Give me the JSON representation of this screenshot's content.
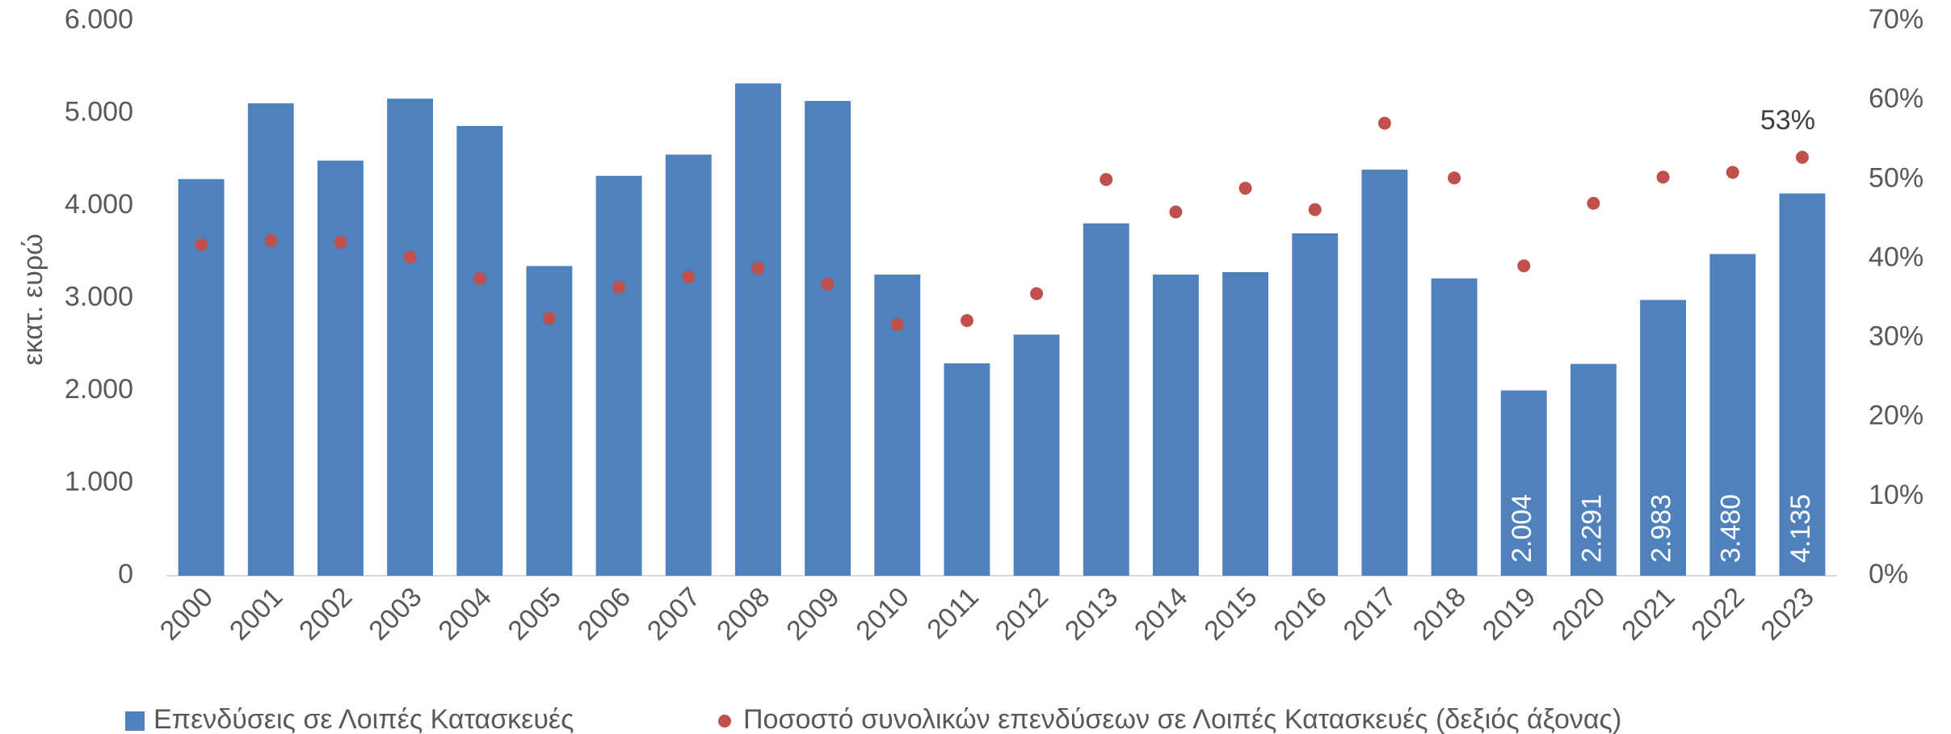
{
  "chart_data": {
    "type": "bar",
    "categories": [
      "2000",
      "2001",
      "2002",
      "2003",
      "2004",
      "2005",
      "2006",
      "2007",
      "2008",
      "2009",
      "2010",
      "2011",
      "2012",
      "2013",
      "2014",
      "2015",
      "2016",
      "2017",
      "2018",
      "2019",
      "2020",
      "2021",
      "2022",
      "2023"
    ],
    "series": [
      {
        "name": "Επενδύσεις σε Λοιπές Κατασκευές",
        "color": "#4f81bd",
        "values": [
          4290,
          5110,
          4490,
          5160,
          4865,
          3350,
          4325,
          4555,
          5325,
          5135,
          3257,
          2297,
          2608,
          3811,
          3257,
          3284,
          3703,
          4392,
          3216,
          2004,
          2291,
          2983,
          3480,
          4135
        ],
        "value_labels": [
          null,
          null,
          null,
          null,
          null,
          null,
          null,
          null,
          null,
          null,
          null,
          null,
          null,
          null,
          null,
          null,
          null,
          null,
          null,
          "2.004",
          "2.291",
          "2.983",
          "3.480",
          "4.135"
        ]
      },
      {
        "name": "Ποσοστό συνολικών επενδύσεων σε Λοιπές Κατασκευές (δεξιός άξονας)",
        "color": "#c0504d",
        "type": "scatter",
        "axis": "y2",
        "values": [
          41.8,
          42.3,
          42.1,
          40.2,
          37.5,
          32.5,
          36.4,
          37.7,
          38.8,
          36.8,
          31.7,
          32.2,
          35.6,
          50.0,
          45.9,
          48.9,
          46.2,
          57.1,
          50.2,
          39.1,
          47.0,
          50.3,
          50.9,
          52.8
        ],
        "value_labels": [
          null,
          null,
          null,
          null,
          null,
          null,
          null,
          null,
          null,
          null,
          null,
          null,
          null,
          null,
          null,
          null,
          null,
          null,
          null,
          null,
          null,
          null,
          null,
          "53%"
        ]
      }
    ],
    "y_label": "εκατ. ευρώ",
    "ylim": [
      0,
      6000
    ],
    "yticks": [
      0,
      {
        "value": 1000,
        "label": "1.000"
      },
      {
        "value": 2000,
        "label": "2.000"
      },
      {
        "value": 3000,
        "label": "3.000"
      },
      {
        "value": 4000,
        "label": "4.000"
      },
      {
        "value": 5000,
        "label": "5.000"
      },
      {
        "value": 6000,
        "label": "6.000"
      }
    ],
    "y2lim": [
      0,
      70
    ],
    "y2ticks": [
      {
        "value": 0,
        "label": "0%"
      },
      {
        "value": 10,
        "label": "10%"
      },
      {
        "value": 20,
        "label": "20%"
      },
      {
        "value": 30,
        "label": "30%"
      },
      {
        "value": 40,
        "label": "40%"
      },
      {
        "value": 50,
        "label": "50%"
      },
      {
        "value": 60,
        "label": "60%"
      },
      {
        "value": 70,
        "label": "70%"
      }
    ],
    "grid": false,
    "legend": "bottom"
  }
}
